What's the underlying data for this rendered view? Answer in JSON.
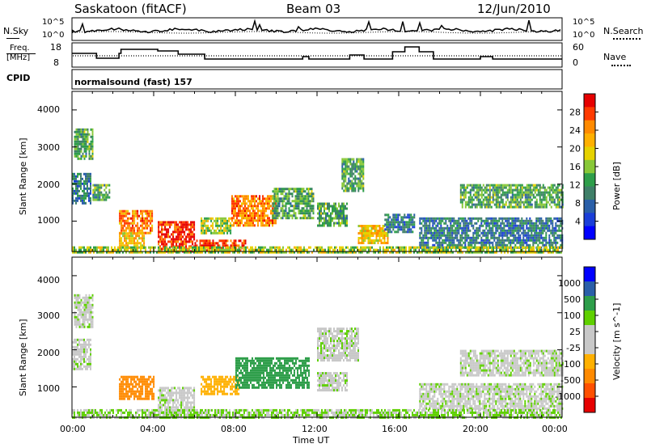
{
  "header": {
    "station": "Saskatoon (fitACF)",
    "beam": "Beam 03",
    "date": "12/Jun/2010"
  },
  "noise_panel": {
    "left_label": "N.Sky",
    "left_ticks": [
      "10^5",
      "10^0"
    ],
    "right_ticks": [
      "10^5",
      "10^0"
    ],
    "right_label": "N.Search"
  },
  "freq_panel": {
    "left_label_1": "Freq.",
    "left_label_2": "[MHz]",
    "left_ticks": [
      "18",
      "8"
    ],
    "right_ticks": [
      "60",
      "0"
    ],
    "right_label": "Nave"
  },
  "cpid": {
    "label": "CPID",
    "value": "normalsound (fast) 157"
  },
  "axes": {
    "ylabel": "Slant Range [km]",
    "yticks": [
      "4000",
      "3000",
      "2000",
      "1000"
    ],
    "xticks": [
      "00:00",
      "04:00",
      "08:00",
      "12:00",
      "16:00",
      "20:00",
      "00:00"
    ],
    "xlabel": "Time UT"
  },
  "power_scale": {
    "label": "Power [dB]",
    "ticks": [
      "28",
      "24",
      "20",
      "16",
      "12",
      "8",
      "4"
    ],
    "colors": [
      "#e60000",
      "#ff3a00",
      "#ff8a00",
      "#ffb000",
      "#e6d200",
      "#88c838",
      "#2e9e4a",
      "#3f7f68",
      "#2a5fa8",
      "#1a3ed8",
      "#0000ff"
    ]
  },
  "velocity_scale": {
    "label": "Velocity [m s^-1]",
    "ticks": [
      "1000",
      "500",
      "100",
      "25",
      "-25",
      "-100",
      "-500",
      "-1000"
    ],
    "colors": [
      "#0000ff",
      "#2a5fa8",
      "#2e9e4a",
      "#5fd000",
      "#c8c8c8",
      "#c8c8c8",
      "#ffb000",
      "#ff8a00",
      "#ff5000",
      "#e60000"
    ]
  },
  "chart_data": [
    {
      "type": "heatmap",
      "title": "Power",
      "xlabel": "Time UT",
      "ylabel": "Slant Range [km]",
      "xlim": [
        0,
        24
      ],
      "ylim": [
        180,
        4500
      ],
      "colorbar": "Power [dB]",
      "regions": [
        {
          "t0": 0.1,
          "t1": 1.0,
          "r0": 2700,
          "r1": 3500,
          "level": 12
        },
        {
          "t0": 0.0,
          "t1": 0.9,
          "r0": 1500,
          "r1": 2300,
          "level": 8
        },
        {
          "t0": 1.0,
          "t1": 1.8,
          "r0": 1600,
          "r1": 2000,
          "level": 12
        },
        {
          "t0": 2.3,
          "t1": 3.9,
          "r0": 700,
          "r1": 1300,
          "level": 24
        },
        {
          "t0": 2.3,
          "t1": 3.5,
          "r0": 300,
          "r1": 700,
          "level": 20
        },
        {
          "t0": 4.2,
          "t1": 6.0,
          "r0": 200,
          "r1": 1000,
          "level": 28
        },
        {
          "t0": 6.0,
          "t1": 8.5,
          "r0": 200,
          "r1": 500,
          "level": 28
        },
        {
          "t0": 6.3,
          "t1": 7.8,
          "r0": 700,
          "r1": 1100,
          "level": 16
        },
        {
          "t0": 7.8,
          "t1": 10.0,
          "r0": 900,
          "r1": 1700,
          "level": 24
        },
        {
          "t0": 9.8,
          "t1": 11.8,
          "r0": 1100,
          "r1": 1900,
          "level": 12
        },
        {
          "t0": 12.0,
          "t1": 13.5,
          "r0": 900,
          "r1": 1500,
          "level": 12
        },
        {
          "t0": 13.2,
          "t1": 14.3,
          "r0": 1800,
          "r1": 2700,
          "level": 12
        },
        {
          "t0": 14.0,
          "t1": 15.5,
          "r0": 400,
          "r1": 900,
          "level": 20
        },
        {
          "t0": 15.3,
          "t1": 16.8,
          "r0": 700,
          "r1": 1200,
          "level": 8
        },
        {
          "t0": 17.0,
          "t1": 24.0,
          "r0": 300,
          "r1": 1100,
          "level": 8
        },
        {
          "t0": 19.0,
          "t1": 24.0,
          "r0": 1400,
          "r1": 2000,
          "level": 12
        },
        {
          "t0": 0.0,
          "t1": 24.0,
          "r0": 180,
          "r1": 320,
          "level": 16
        }
      ]
    },
    {
      "type": "heatmap",
      "title": "Velocity",
      "xlabel": "Time UT",
      "ylabel": "Slant Range [km]",
      "xlim": [
        0,
        24
      ],
      "ylim": [
        180,
        4500
      ],
      "colorbar": "Velocity [m s^-1]",
      "regions": [
        {
          "t0": 0.1,
          "t1": 1.0,
          "r0": 2600,
          "r1": 3500,
          "level": 0
        },
        {
          "t0": 0.0,
          "t1": 0.9,
          "r0": 1500,
          "r1": 2300,
          "level": 0
        },
        {
          "t0": 2.3,
          "t1": 4.0,
          "r0": 700,
          "r1": 1300,
          "level": -500
        },
        {
          "t0": 4.2,
          "t1": 6.0,
          "r0": 200,
          "r1": 1000,
          "level": 0
        },
        {
          "t0": 6.3,
          "t1": 8.2,
          "r0": 800,
          "r1": 1300,
          "level": -100
        },
        {
          "t0": 8.0,
          "t1": 11.6,
          "r0": 1000,
          "r1": 1800,
          "level": 100
        },
        {
          "t0": 12.0,
          "t1": 14.0,
          "r0": 1700,
          "r1": 2600,
          "level": 0
        },
        {
          "t0": 12.0,
          "t1": 13.5,
          "r0": 900,
          "r1": 1400,
          "level": 0
        },
        {
          "t0": 17.0,
          "t1": 24.0,
          "r0": 400,
          "r1": 1100,
          "level": 0
        },
        {
          "t0": 19.0,
          "t1": 24.0,
          "r0": 1300,
          "r1": 2000,
          "level": 0
        },
        {
          "t0": 0.0,
          "t1": 24.0,
          "r0": 180,
          "r1": 400,
          "level": 25
        }
      ]
    }
  ]
}
